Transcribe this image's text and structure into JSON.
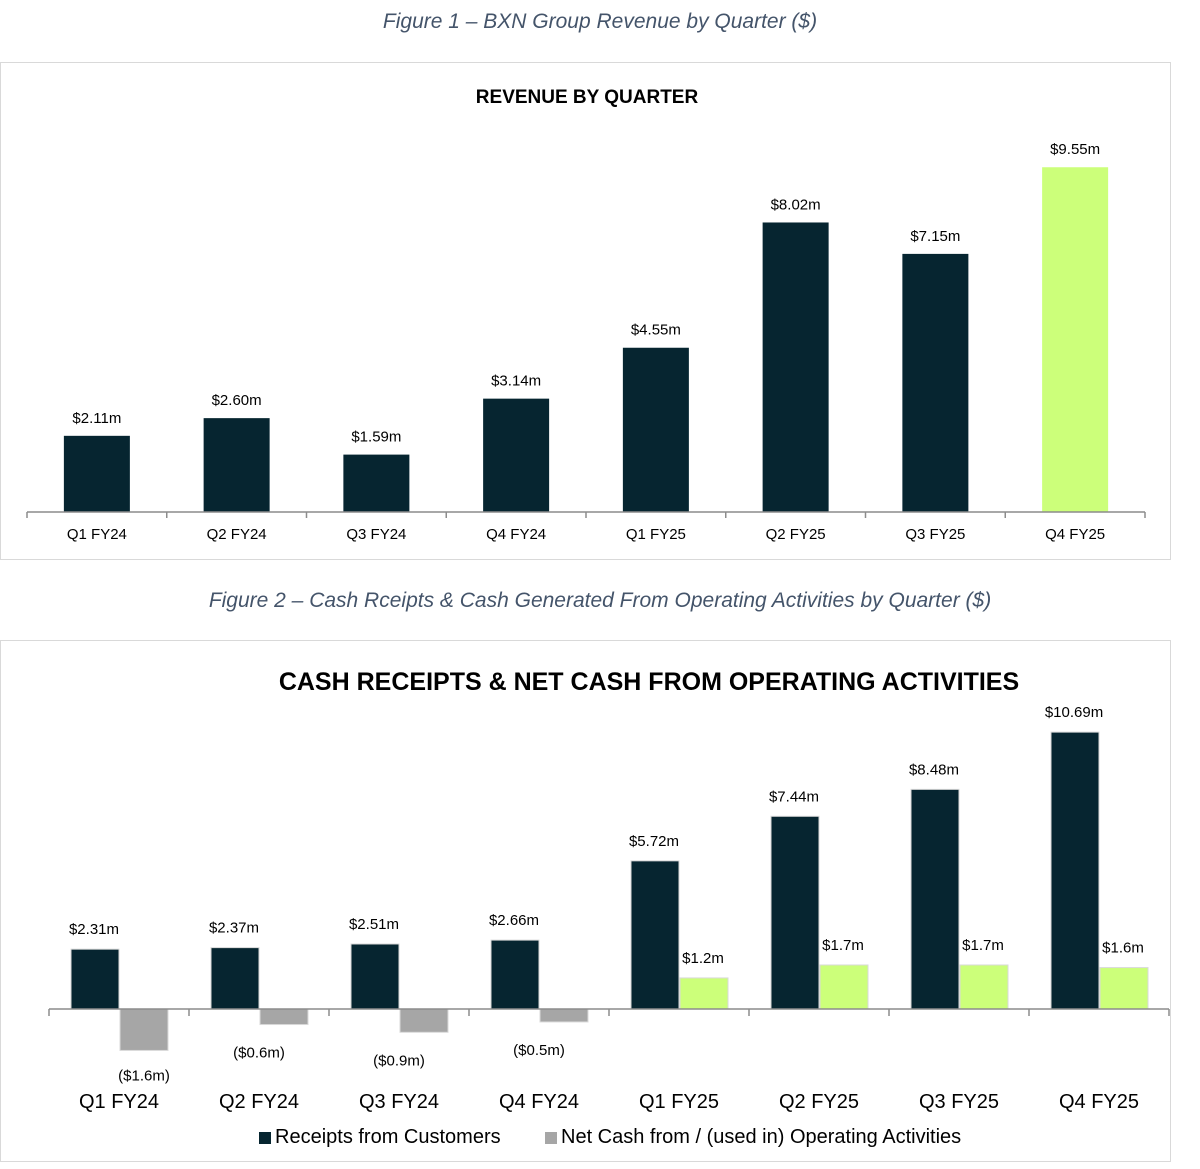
{
  "figure1_caption": "Figure 1 – BXN Group Revenue by Quarter ($)",
  "figure2_caption": "Figure 2 – Cash Rceipts & Cash Generated From Operating Activities by Quarter ($)",
  "colors": {
    "dark_navy": "#062530",
    "lime": "#ccff7a",
    "grey": "#a6a6a6",
    "caption": "#44546a"
  },
  "chart_data": [
    {
      "type": "bar",
      "title": "REVENUE BY QUARTER",
      "categories": [
        "Q1 FY24",
        "Q2 FY24",
        "Q3 FY24",
        "Q4 FY24",
        "Q1 FY25",
        "Q2 FY25",
        "Q3 FY25",
        "Q4 FY25"
      ],
      "values": [
        2.11,
        2.6,
        1.59,
        3.14,
        4.55,
        8.02,
        7.15,
        9.55
      ],
      "data_labels": [
        "$2.11m",
        "$2.60m",
        "$1.59m",
        "$3.14m",
        "$4.55m",
        "$8.02m",
        "$7.15m",
        "$9.55m"
      ],
      "highlight_index": 7,
      "ylim": [
        0,
        10
      ],
      "grid": false,
      "legend": "none"
    },
    {
      "type": "bar",
      "title": "CASH RECEIPTS & NET CASH FROM OPERATING ACTIVITIES",
      "categories": [
        "Q1 FY24",
        "Q2 FY24",
        "Q3 FY24",
        "Q4 FY24",
        "Q1 FY25",
        "Q2 FY25",
        "Q3 FY25",
        "Q4 FY25"
      ],
      "series": [
        {
          "name": "Receipts from Customers",
          "values": [
            2.31,
            2.37,
            2.51,
            2.66,
            5.72,
            7.44,
            8.48,
            10.69
          ],
          "data_labels": [
            "$2.31m",
            "$2.37m",
            "$2.51m",
            "$2.66m",
            "$5.72m",
            "$7.44m",
            "$8.48m",
            "$10.69m"
          ]
        },
        {
          "name": "Net Cash from / (used in) Operating Activities",
          "values": [
            -1.6,
            -0.6,
            -0.9,
            -0.5,
            1.2,
            1.7,
            1.7,
            1.6
          ],
          "data_labels": [
            "($1.6m)",
            "($0.6m)",
            "($0.9m)",
            "($0.5m)",
            "$1.2m",
            "$1.7m",
            "$1.7m",
            "$1.6m"
          ]
        }
      ],
      "ylim": [
        -2,
        12
      ],
      "grid": false,
      "legend": "bottom"
    }
  ]
}
